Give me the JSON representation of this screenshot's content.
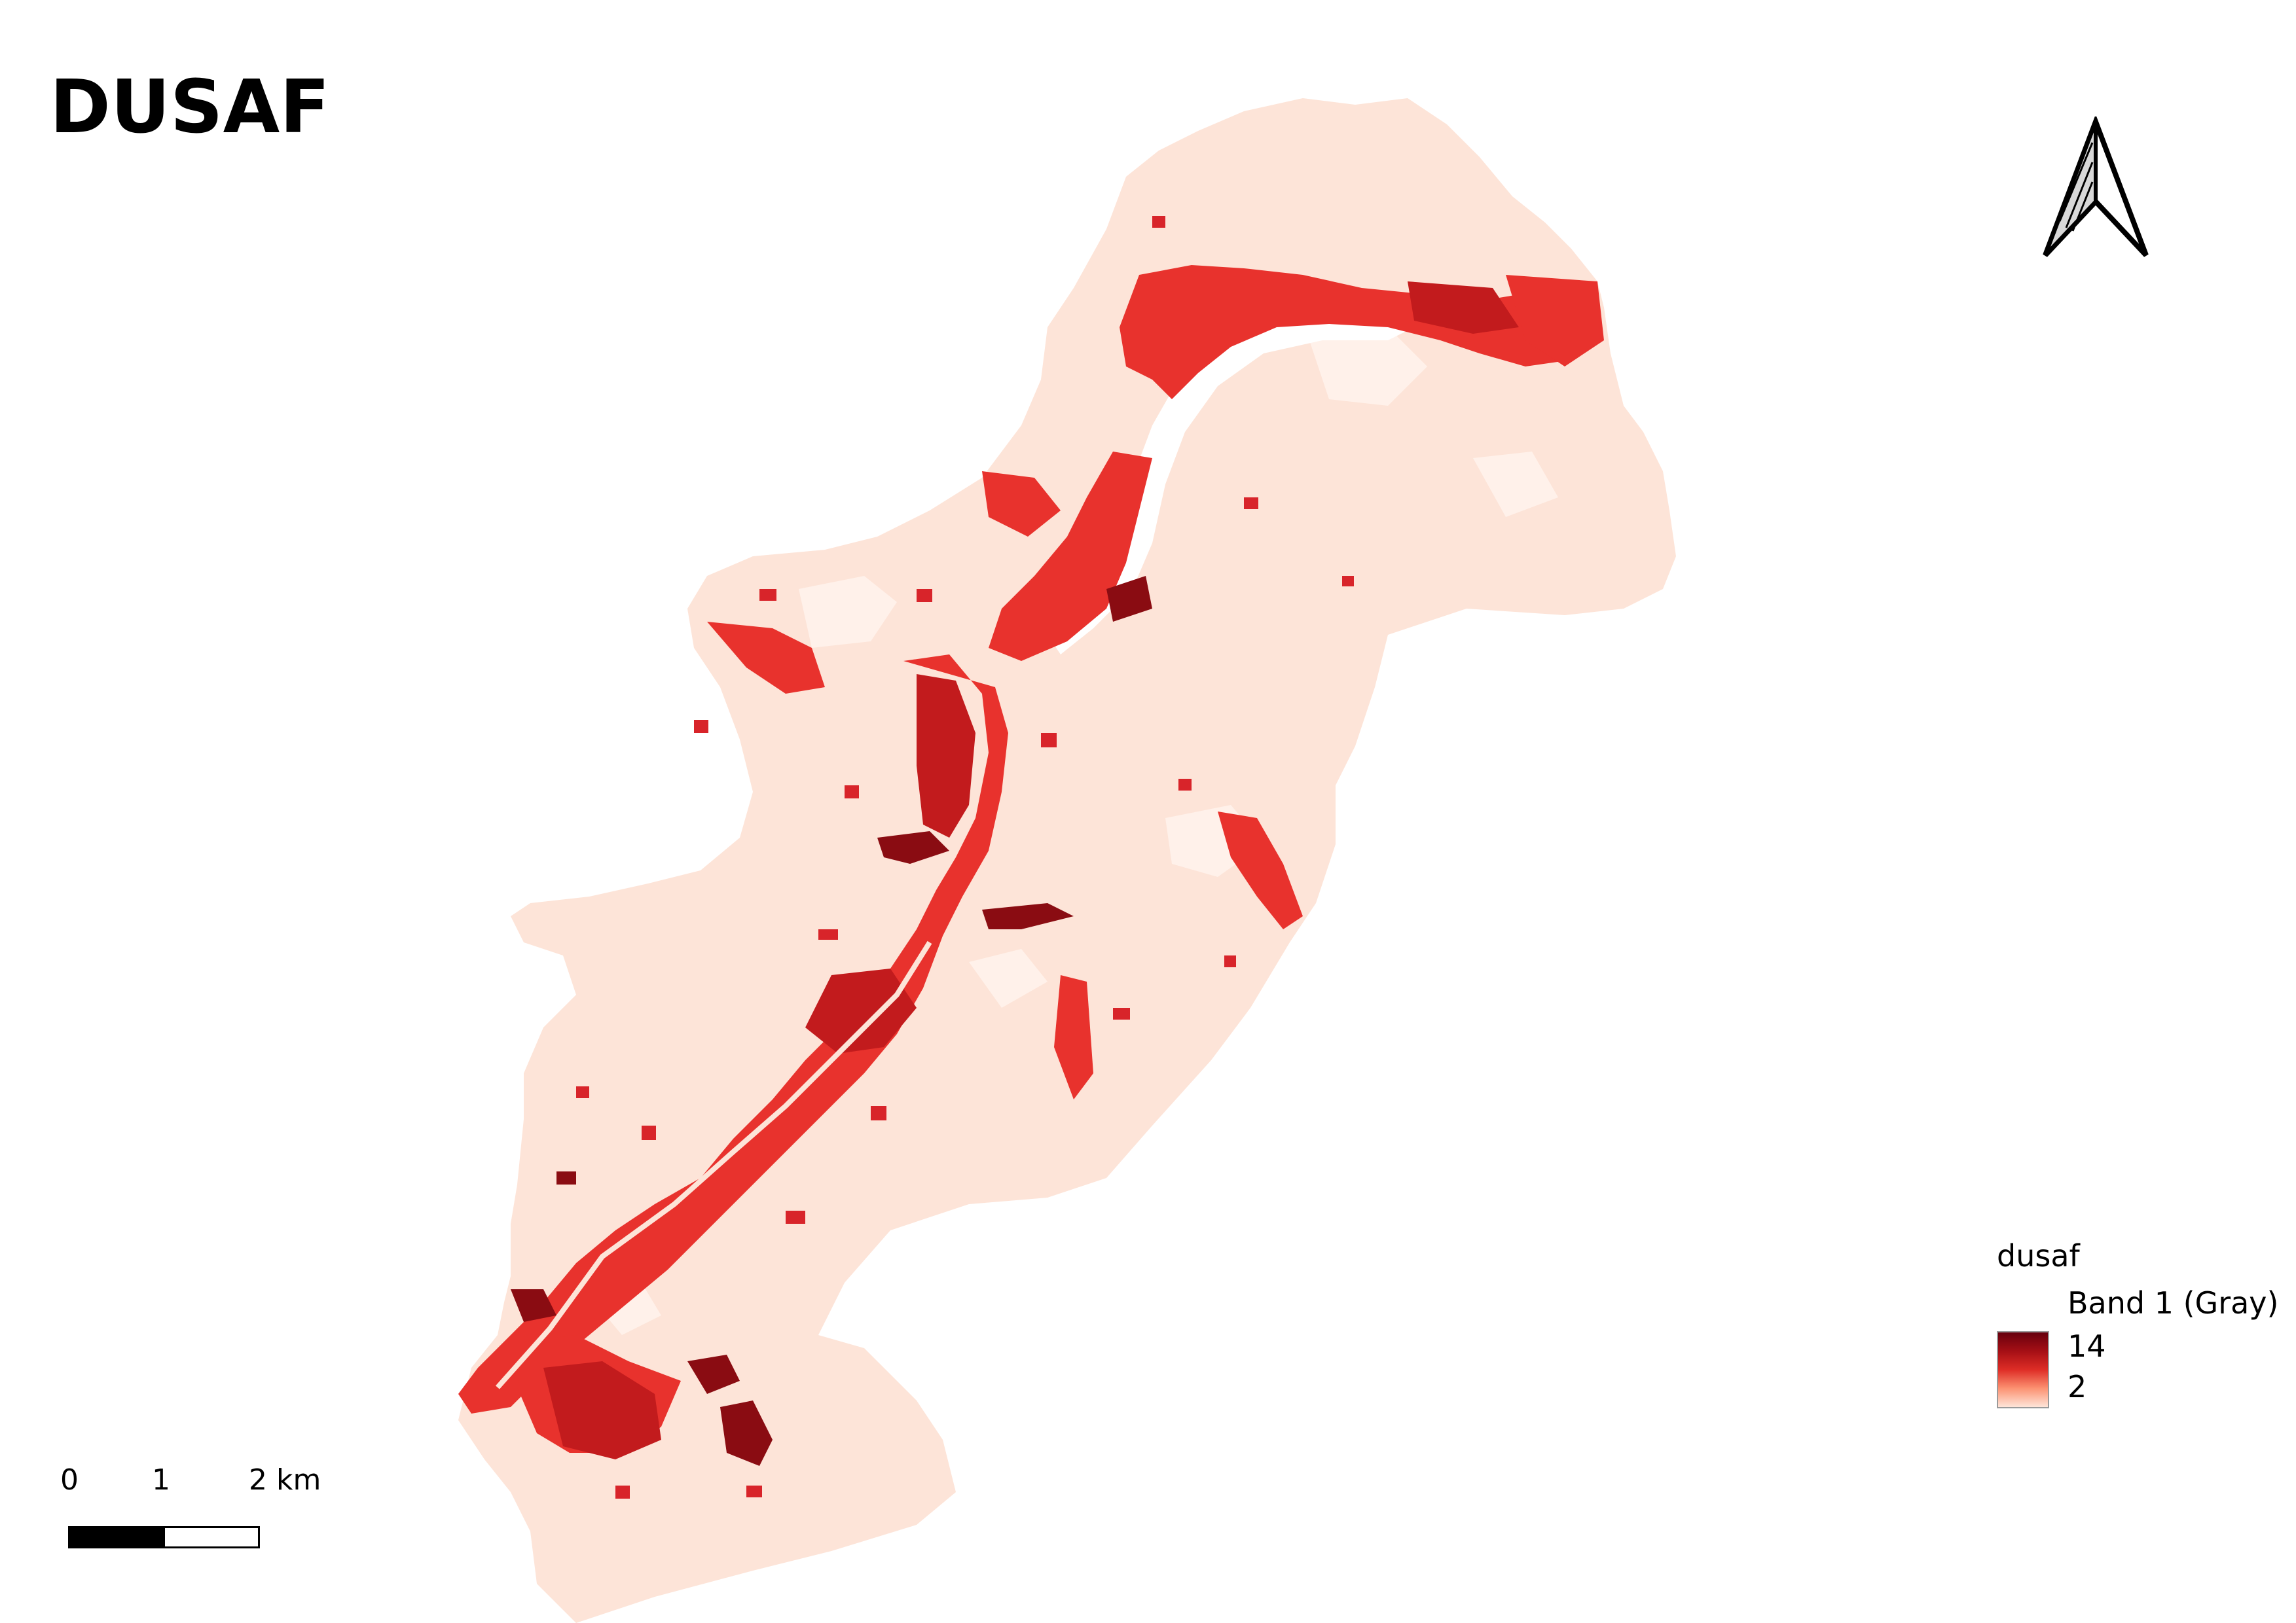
{
  "title": "DUSAF",
  "north_arrow": {
    "icon": "north-arrow-icon"
  },
  "scalebar": {
    "labels": [
      "0",
      "1",
      "2 km"
    ],
    "segment_colors": [
      "#000000",
      "#ffffff"
    ]
  },
  "legend": {
    "layer_name": "dusaf",
    "band_name": "Band 1 (Gray)",
    "max_label": "14",
    "min_label": "2",
    "max_value": 14,
    "min_value": 2,
    "ramp_colors": [
      "#fee5d9",
      "#fc9272",
      "#de2d26",
      "#a50f15",
      "#67000d"
    ]
  },
  "colors": {
    "background_land": "#fde4d8",
    "low_class": "#fce0d2",
    "medium_class": "#e8322d",
    "high_class": "#c21b1d",
    "max_class": "#8a0c12",
    "water": "#ffffff"
  }
}
